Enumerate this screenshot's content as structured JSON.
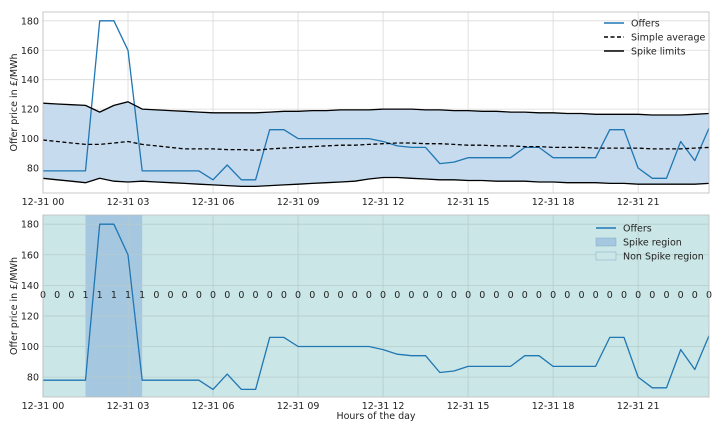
{
  "chart_data": [
    {
      "type": "line",
      "ylabel": "Offer price in £/MWh",
      "xlabel": "",
      "x_tick_labels": [
        "12-31 00",
        "12-31 03",
        "12-31 06",
        "12-31 09",
        "12-31 12",
        "12-31 15",
        "12-31 18",
        "12-31 21"
      ],
      "x_tick_hours": [
        0,
        3,
        6,
        9,
        12,
        15,
        18,
        21
      ],
      "x_range_hours": [
        0,
        23.5
      ],
      "ylim": [
        63,
        186
      ],
      "y_ticks": [
        80,
        100,
        120,
        140,
        160,
        180
      ],
      "grid": true,
      "legend_position": "top-right",
      "x_hours": [
        0,
        0.5,
        1,
        1.5,
        2,
        2.5,
        3,
        3.5,
        4,
        4.5,
        5,
        5.5,
        6,
        6.5,
        7,
        7.5,
        8,
        8.5,
        9,
        9.5,
        10,
        10.5,
        11,
        11.5,
        12,
        12.5,
        13,
        13.5,
        14,
        14.5,
        15,
        15.5,
        16,
        16.5,
        17,
        17.5,
        18,
        18.5,
        19,
        19.5,
        20,
        20.5,
        21,
        21.5,
        22,
        22.5,
        23,
        23.5
      ],
      "series": [
        {
          "name": "Offers",
          "style": "solid",
          "color": "#1f77b4",
          "values": [
            78,
            78,
            78,
            78,
            180,
            180,
            160,
            78,
            78,
            78,
            78,
            78,
            72,
            82,
            72,
            72,
            106,
            106,
            100,
            100,
            100,
            100,
            100,
            100,
            98,
            95,
            94,
            94,
            83,
            84,
            87,
            87,
            87,
            87,
            94,
            94,
            87,
            87,
            87,
            87,
            106,
            106,
            80,
            73,
            73,
            98,
            85,
            107
          ]
        },
        {
          "name": "Simple average",
          "style": "dashed",
          "color": "#000000",
          "values": [
            99,
            98,
            97,
            96,
            96,
            97,
            98,
            96,
            95,
            94,
            93,
            93,
            93,
            92.5,
            92.5,
            92,
            93,
            93.5,
            94,
            94.5,
            95,
            95.5,
            95.5,
            96,
            96.5,
            97,
            97,
            96.5,
            96.5,
            96,
            95.5,
            95.5,
            95,
            95,
            94.5,
            94.5,
            94,
            94,
            94,
            93.5,
            93.5,
            93.5,
            93.5,
            93,
            93,
            93,
            93.5,
            94
          ]
        },
        {
          "name": "Spike limits",
          "style": "solid",
          "color": "#000000",
          "values": [
            124,
            123.5,
            123,
            122.5,
            118,
            122.5,
            125,
            120,
            119.5,
            119,
            118.5,
            118,
            117.5,
            117.5,
            117.5,
            117.5,
            118,
            118.5,
            118.5,
            119,
            119,
            119.5,
            119.5,
            119.5,
            120,
            120,
            120,
            119.5,
            119.5,
            119,
            119,
            118.5,
            118.5,
            118,
            118,
            117.5,
            117.5,
            117,
            117,
            116.5,
            116.5,
            116.5,
            116.5,
            116,
            116,
            116,
            116.5,
            117
          ]
        },
        {
          "name": "",
          "style": "solid",
          "color": "#000000",
          "values": [
            73,
            72,
            71,
            70,
            73,
            71,
            70.5,
            71,
            70.5,
            70,
            69.5,
            69,
            68.5,
            68,
            67.5,
            67.5,
            68,
            68.5,
            69,
            69.5,
            70,
            70.5,
            71,
            72.5,
            73.5,
            73.5,
            73,
            72.5,
            72,
            72,
            71.5,
            71.5,
            71,
            71,
            71,
            70.5,
            70.5,
            70,
            70,
            70,
            69.5,
            69.5,
            69,
            69,
            69,
            69,
            69,
            69.5
          ]
        }
      ],
      "band_fill_color": "#c6dbed"
    },
    {
      "type": "line",
      "ylabel": "Offer price in £/MWh",
      "xlabel": "Hours of the day",
      "x_tick_labels": [
        "12-31 00",
        "12-31 03",
        "12-31 06",
        "12-31 09",
        "12-31 12",
        "12-31 15",
        "12-31 18",
        "12-31 21"
      ],
      "x_tick_hours": [
        0,
        3,
        6,
        9,
        12,
        15,
        18,
        21
      ],
      "x_range_hours": [
        0,
        23.5
      ],
      "ylim": [
        67,
        186
      ],
      "y_ticks": [
        80,
        100,
        120,
        140,
        160,
        180
      ],
      "grid": true,
      "legend_position": "top-right",
      "spike_flags": [
        0,
        0,
        0,
        1,
        1,
        1,
        1,
        1,
        0,
        0,
        0,
        0,
        0,
        0,
        0,
        0,
        0,
        0,
        0,
        0,
        0,
        0,
        0,
        0,
        0,
        0,
        0,
        0,
        0,
        0,
        0,
        0,
        0,
        0,
        0,
        0,
        0,
        0,
        0,
        0,
        0,
        0,
        0,
        0,
        0,
        0,
        0,
        0
      ],
      "spike_region_hours": [
        1.5,
        3.5
      ],
      "flag_text_value": 134,
      "series": [
        {
          "name": "Offers",
          "style": "solid",
          "color": "#1f77b4",
          "values": [
            78,
            78,
            78,
            78,
            180,
            180,
            160,
            78,
            78,
            78,
            78,
            78,
            72,
            82,
            72,
            72,
            106,
            106,
            100,
            100,
            100,
            100,
            100,
            100,
            98,
            95,
            94,
            94,
            83,
            84,
            87,
            87,
            87,
            87,
            94,
            94,
            87,
            87,
            87,
            87,
            106,
            106,
            80,
            73,
            73,
            98,
            85,
            107
          ]
        }
      ],
      "regions": [
        {
          "name": "Spike region",
          "color": "#a5c7e0"
        },
        {
          "name": "Non Spike region",
          "color": "#cbe6e6"
        }
      ]
    }
  ]
}
